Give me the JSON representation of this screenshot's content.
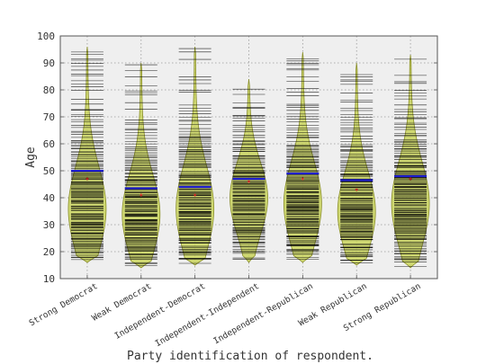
{
  "chart_data": {
    "type": "violin",
    "xlabel": "Party identification of respondent.",
    "ylabel": "Age",
    "ylim": [
      10,
      100
    ],
    "yticks": [
      10,
      20,
      30,
      40,
      50,
      60,
      70,
      80,
      90,
      100
    ],
    "grid": true,
    "colors": {
      "plot_background": "#efefef",
      "violin_fill": "#c9d45c",
      "violin_edge": "#8a8f2a",
      "rug_line": "#000000",
      "mean_line": "#1f1fcc",
      "median_line": "#cc2222",
      "grid": "#9a9a9a"
    },
    "categories": [
      "Strong Democrat",
      "Weak Democrat",
      "Independent-Democrat",
      "Independent-Independent",
      "Independent-Republican",
      "Weak Republican",
      "Strong Republican"
    ],
    "series": [
      {
        "category": "Strong Democrat",
        "min": 16,
        "max": 96,
        "mean": 50,
        "median": 47,
        "mode": 36
      },
      {
        "category": "Weak Democrat",
        "min": 14,
        "max": 90,
        "mean": 43.5,
        "median": 41,
        "mode": 34
      },
      {
        "category": "Independent-Democrat",
        "min": 15,
        "max": 96,
        "mean": 44,
        "median": 41,
        "mode": 36
      },
      {
        "category": "Independent-Independent",
        "min": 16,
        "max": 84,
        "mean": 47,
        "median": 46,
        "mode": 40
      },
      {
        "category": "Independent-Republican",
        "min": 16,
        "max": 94,
        "mean": 49,
        "median": 47,
        "mode": 38
      },
      {
        "category": "Weak Republican",
        "min": 15,
        "max": 90,
        "mean": 46.5,
        "median": 43,
        "mode": 35
      },
      {
        "category": "Strong Republican",
        "min": 14,
        "max": 93,
        "mean": 48,
        "median": 47,
        "mode": 38
      }
    ]
  }
}
